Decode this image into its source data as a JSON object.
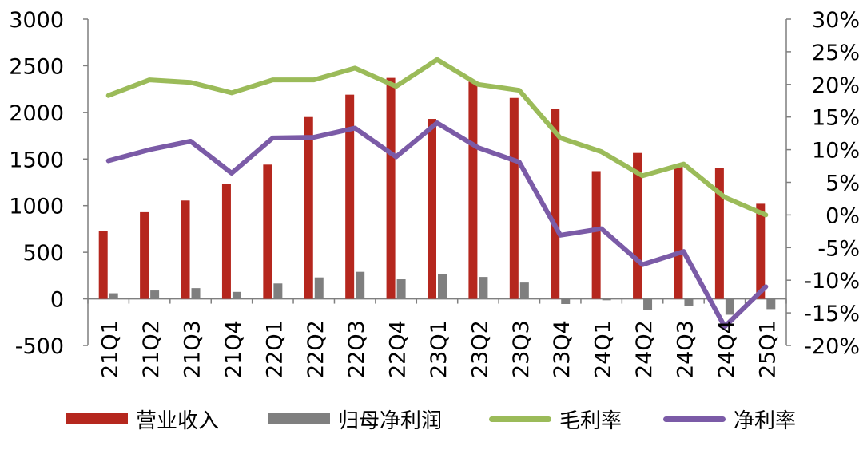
{
  "chart_data": {
    "type": "bar",
    "categories": [
      "21Q1",
      "21Q2",
      "21Q3",
      "21Q4",
      "22Q1",
      "22Q2",
      "22Q3",
      "22Q4",
      "23Q1",
      "23Q2",
      "23Q3",
      "23Q4",
      "24Q1",
      "24Q2",
      "24Q3",
      "24Q4",
      "25Q1"
    ],
    "left_axis": {
      "min": -500,
      "max": 3000,
      "ticks": [
        -500,
        0,
        500,
        1000,
        1500,
        2000,
        2500,
        3000
      ]
    },
    "right_axis": {
      "min": -20,
      "max": 30,
      "ticks": [
        -20,
        -15,
        -10,
        -5,
        0,
        5,
        10,
        15,
        20,
        25,
        30
      ],
      "tick_labels": [
        "-20%",
        "-15%",
        "-10%",
        "-5%",
        "0%",
        "5%",
        "10%",
        "15%",
        "20%",
        "25%",
        "30%"
      ]
    },
    "left_tick_labels": [
      "-500",
      "0",
      "500",
      "1000",
      "1500",
      "2000",
      "2500",
      "3000"
    ],
    "grid": false,
    "legend_position": "bottom",
    "series": [
      {
        "name": "营业收入",
        "type": "bar",
        "axis": "left",
        "color": "#B5271E",
        "values": [
          725,
          930,
          1055,
          1230,
          1440,
          1950,
          2190,
          2370,
          1930,
          2330,
          2155,
          2040,
          1370,
          1565,
          1440,
          1400,
          1020
        ]
      },
      {
        "name": "归母净利润",
        "type": "bar",
        "axis": "left",
        "color": "#7F7F7F",
        "values": [
          60,
          90,
          115,
          75,
          165,
          230,
          290,
          210,
          270,
          235,
          175,
          -55,
          -15,
          -120,
          -75,
          -170,
          -110
        ]
      },
      {
        "name": "毛利率",
        "type": "line",
        "axis": "right",
        "color": "#9BBB59",
        "values": [
          18.3,
          20.7,
          20.3,
          18.7,
          20.7,
          20.7,
          22.5,
          19.7,
          23.8,
          20.0,
          19.1,
          11.8,
          9.7,
          6.0,
          7.8,
          2.7,
          0.0
        ]
      },
      {
        "name": "净利率",
        "type": "line",
        "axis": "right",
        "color": "#7B5BA7",
        "values": [
          8.3,
          10.0,
          11.3,
          6.4,
          11.8,
          11.9,
          13.3,
          8.9,
          14.1,
          10.3,
          8.1,
          -3.1,
          -2.1,
          -7.6,
          -5.6,
          -17.1,
          -11.0
        ]
      }
    ]
  }
}
